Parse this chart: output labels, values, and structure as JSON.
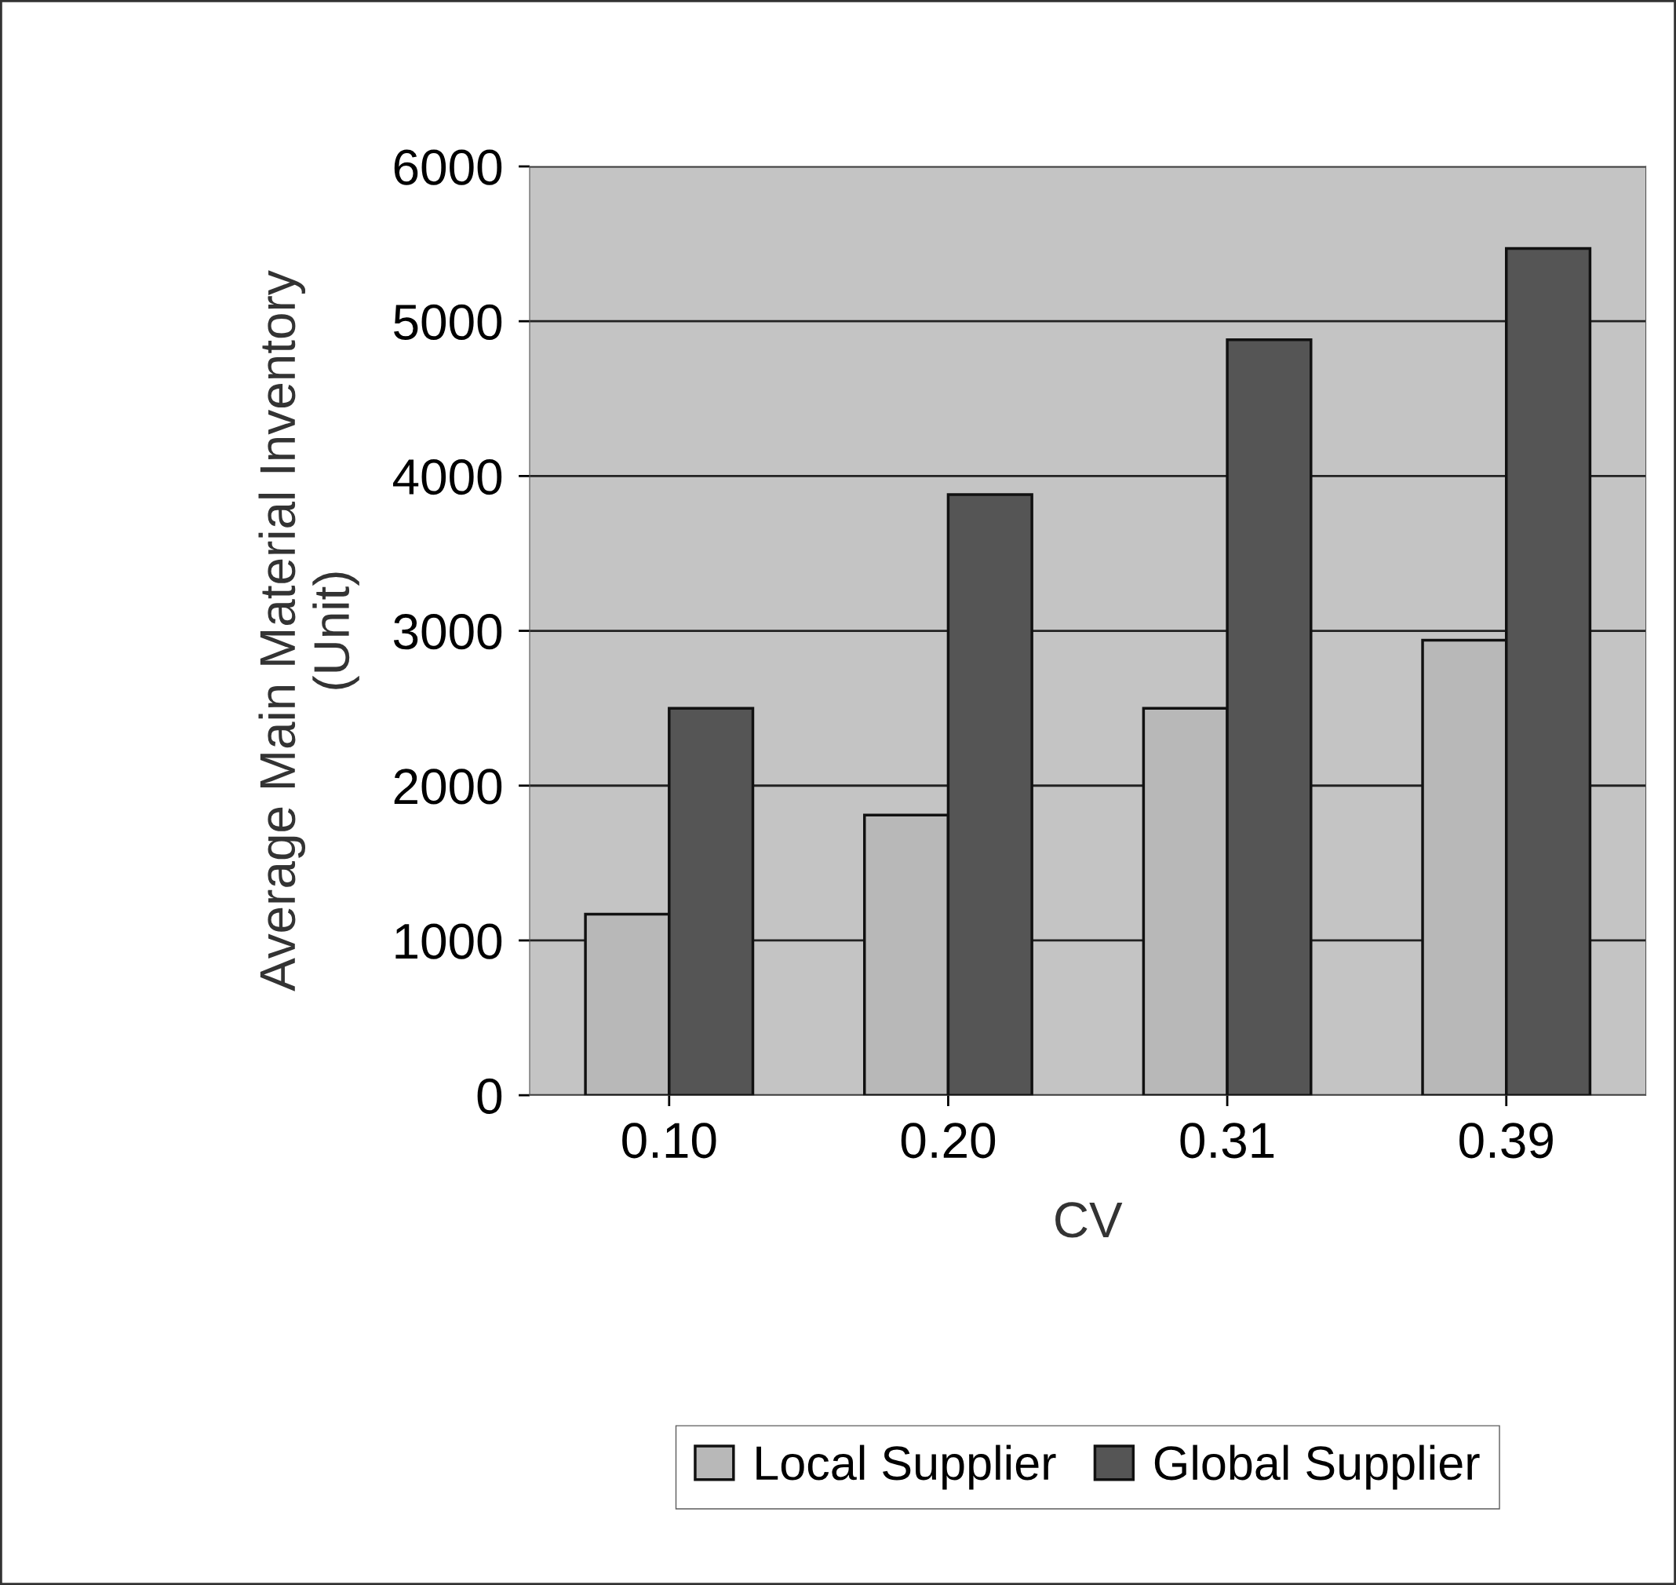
{
  "chart_data": {
    "type": "bar",
    "xlabel": "CV",
    "ylabel": "Average Main Material Inventory\n(Unit)",
    "categories": [
      "0.10",
      "0.20",
      "0.31",
      "0.39"
    ],
    "series": [
      {
        "name": "Local Supplier",
        "color": "#b8b8b8",
        "values": [
          1170,
          1810,
          2500,
          2940
        ]
      },
      {
        "name": "Global Supplier",
        "color": "#555555",
        "values": [
          2500,
          3880,
          4880,
          5470
        ]
      }
    ],
    "ylim": [
      0,
      6000
    ],
    "yticks": [
      0,
      1000,
      2000,
      3000,
      4000,
      5000,
      6000
    ],
    "grid": "y",
    "legend": "bottom"
  }
}
